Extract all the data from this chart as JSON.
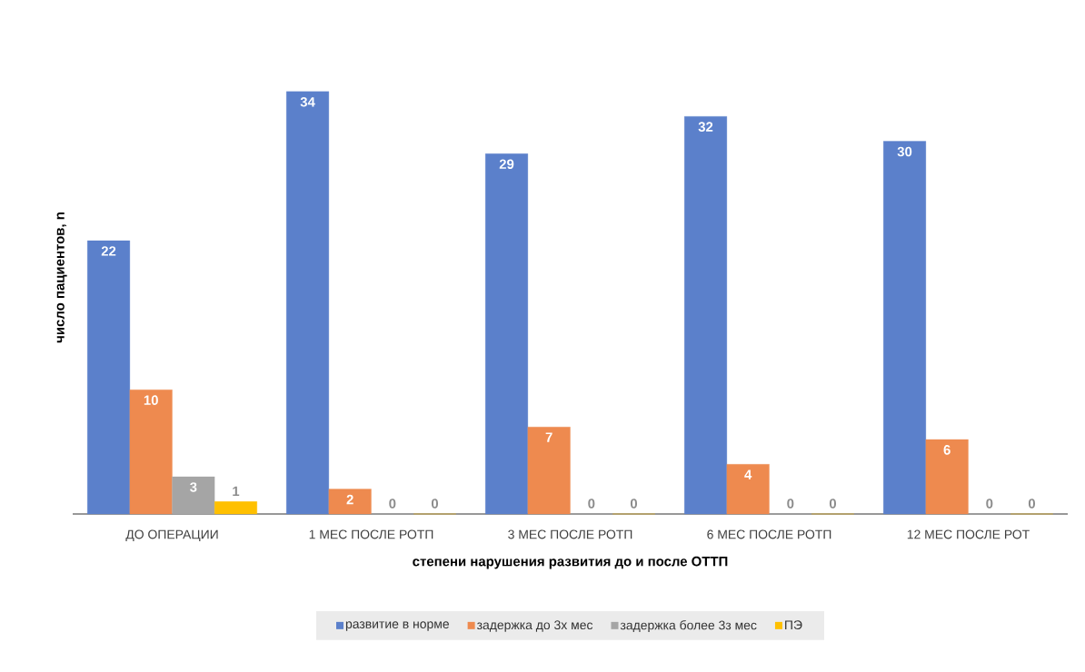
{
  "chart_data": {
    "type": "bar",
    "xlabel": "степени нарушения развития до и после ОТТП",
    "ylabel": "число пациентов, n",
    "categories": [
      "ДО ОПЕРАЦИИ",
      "1 МЕС ПОСЛЕ РОТП",
      "3 МЕС ПОСЛЕ РОТП",
      "6 МЕС ПОСЛЕ РОТП",
      "12 МЕС ПОСЛЕ РОТ"
    ],
    "series": [
      {
        "name": "развитие в норме",
        "color": "#5b80cb",
        "values": [
          22,
          34,
          29,
          32,
          30
        ]
      },
      {
        "name": "задержка до 3х мес",
        "color": "#ee8a4f",
        "values": [
          10,
          2,
          7,
          4,
          6
        ]
      },
      {
        "name": "задержка более 3з мес",
        "color": "#a5a5a5",
        "values": [
          3,
          0,
          0,
          0,
          0
        ]
      },
      {
        "name": "ПЭ",
        "color": "#ffc000",
        "values": [
          1,
          0,
          0,
          0,
          0
        ]
      }
    ],
    "tick_labels": "x",
    "legend": "bottom",
    "data_labels": true
  }
}
